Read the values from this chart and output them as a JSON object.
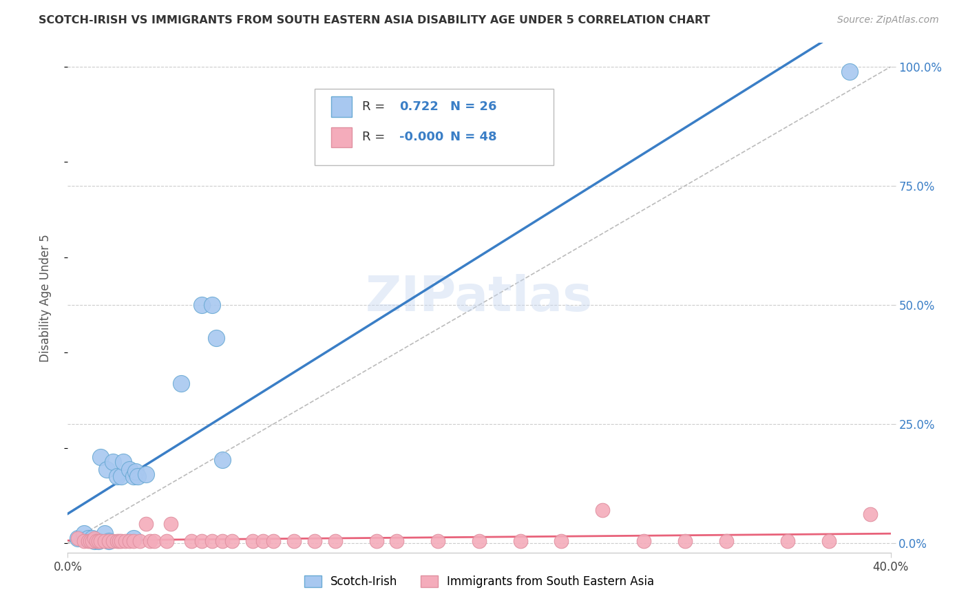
{
  "title": "SCOTCH-IRISH VS IMMIGRANTS FROM SOUTH EASTERN ASIA DISABILITY AGE UNDER 5 CORRELATION CHART",
  "source": "Source: ZipAtlas.com",
  "ylabel": "Disability Age Under 5",
  "right_ytick_vals": [
    0.0,
    0.25,
    0.5,
    0.75,
    1.0
  ],
  "right_ytick_labels": [
    "0.0%",
    "25.0%",
    "50.0%",
    "75.0%",
    "100.0%"
  ],
  "blue_r": 0.722,
  "blue_n": 26,
  "pink_r": -0.0,
  "pink_n": 48,
  "blue_color": "#A8C8F0",
  "pink_color": "#F4ACBB",
  "blue_edge_color": "#6AAAD4",
  "pink_edge_color": "#E090A0",
  "blue_line_color": "#3A7EC6",
  "pink_line_color": "#E8627A",
  "diagonal_color": "#BBBBBB",
  "watermark": "ZIPatlas",
  "blue_points_x": [
    0.005,
    0.008,
    0.01,
    0.012,
    0.013,
    0.015,
    0.016,
    0.018,
    0.019,
    0.02,
    0.022,
    0.024,
    0.026,
    0.027,
    0.03,
    0.032,
    0.032,
    0.033,
    0.034,
    0.038,
    0.055,
    0.065,
    0.07,
    0.072,
    0.075,
    0.38
  ],
  "blue_points_y": [
    0.01,
    0.02,
    0.01,
    0.01,
    0.005,
    0.005,
    0.18,
    0.02,
    0.155,
    0.005,
    0.17,
    0.14,
    0.14,
    0.17,
    0.155,
    0.01,
    0.14,
    0.15,
    0.14,
    0.145,
    0.335,
    0.5,
    0.5,
    0.43,
    0.175,
    0.99
  ],
  "pink_points_x": [
    0.005,
    0.008,
    0.01,
    0.011,
    0.012,
    0.013,
    0.014,
    0.015,
    0.016,
    0.018,
    0.02,
    0.022,
    0.024,
    0.025,
    0.026,
    0.028,
    0.03,
    0.032,
    0.035,
    0.038,
    0.04,
    0.042,
    0.048,
    0.05,
    0.06,
    0.065,
    0.07,
    0.075,
    0.08,
    0.09,
    0.095,
    0.1,
    0.11,
    0.12,
    0.13,
    0.15,
    0.16,
    0.18,
    0.2,
    0.22,
    0.24,
    0.26,
    0.28,
    0.3,
    0.32,
    0.35,
    0.37,
    0.39
  ],
  "pink_points_y": [
    0.01,
    0.005,
    0.005,
    0.005,
    0.005,
    0.01,
    0.005,
    0.005,
    0.005,
    0.005,
    0.005,
    0.005,
    0.005,
    0.005,
    0.005,
    0.005,
    0.005,
    0.005,
    0.005,
    0.04,
    0.005,
    0.005,
    0.005,
    0.04,
    0.005,
    0.005,
    0.005,
    0.005,
    0.005,
    0.005,
    0.005,
    0.005,
    0.005,
    0.005,
    0.005,
    0.005,
    0.005,
    0.005,
    0.005,
    0.005,
    0.005,
    0.07,
    0.005,
    0.005,
    0.005,
    0.005,
    0.005,
    0.06
  ],
  "xmin": 0.0,
  "xmax": 0.4,
  "ymin": -0.02,
  "ymax": 1.05,
  "figsize": [
    14.06,
    8.92
  ],
  "dpi": 100
}
